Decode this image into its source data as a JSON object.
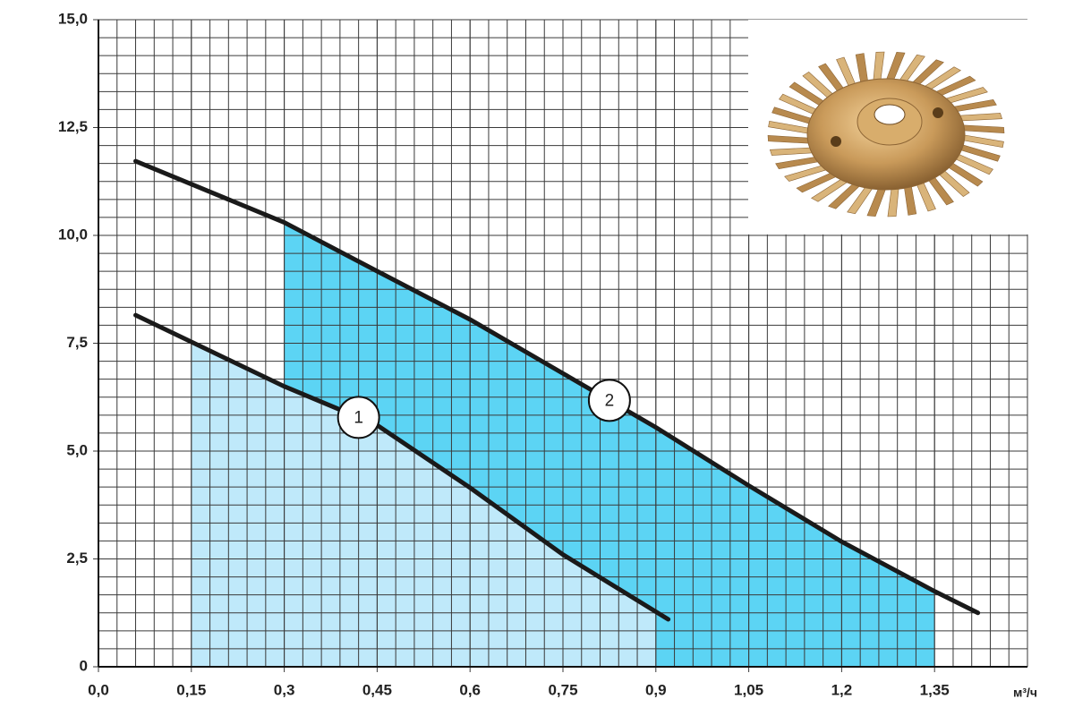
{
  "chart_data": {
    "type": "line",
    "x_unit": "м³/ч",
    "xlim": [
      0,
      1.5
    ],
    "ylim": [
      0,
      15
    ],
    "xticks": [
      {
        "value": 0,
        "label": "0,0"
      },
      {
        "value": 0.15,
        "label": "0,15"
      },
      {
        "value": 0.3,
        "label": "0,3"
      },
      {
        "value": 0.45,
        "label": "0,45"
      },
      {
        "value": 0.6,
        "label": "0,6"
      },
      {
        "value": 0.75,
        "label": "0,75"
      },
      {
        "value": 0.9,
        "label": "0,9"
      },
      {
        "value": 1.05,
        "label": "1,05"
      },
      {
        "value": 1.2,
        "label": "1,2"
      },
      {
        "value": 1.35,
        "label": "1,35"
      }
    ],
    "yticks": [
      0,
      {
        "value": 2.5,
        "label": "2,5"
      },
      {
        "value": 5,
        "label": "5,0"
      },
      {
        "value": 7.5,
        "label": "7,5"
      },
      {
        "value": 10,
        "label": "10,0"
      },
      {
        "value": 12.5,
        "label": "12,5"
      },
      {
        "value": 15,
        "label": "15,0"
      }
    ],
    "grid": true,
    "minor_grid": {
      "x": 5,
      "y": 6
    },
    "series": [
      {
        "name": "1",
        "color": "#1a1a1a",
        "area_color": "#bfe9fa",
        "range": [
          0.15,
          0.9
        ],
        "x": [
          0.06,
          0.3,
          0.45,
          0.6,
          0.75,
          0.92
        ],
        "values": [
          8.15,
          6.5,
          5.6,
          4.15,
          2.6,
          1.1
        ]
      },
      {
        "name": "2",
        "color": "#1a1a1a",
        "area_color": "#5cd4f4",
        "range": [
          0.3,
          1.35
        ],
        "x": [
          0.06,
          0.3,
          0.45,
          0.6,
          0.75,
          0.9,
          1.05,
          1.2,
          1.35,
          1.42
        ],
        "values": [
          11.72,
          10.3,
          9.17,
          8.05,
          6.8,
          5.55,
          4.2,
          2.9,
          1.75,
          1.25
        ]
      }
    ]
  }
}
